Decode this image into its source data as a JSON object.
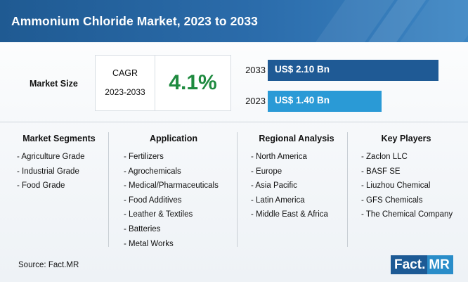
{
  "header": {
    "title": "Ammonium Chloride Market, 2023 to 2033"
  },
  "market_size": {
    "label": "Market Size",
    "cagr_label": "CAGR",
    "cagr_period": "2023-2033",
    "cagr_value": "4.1%"
  },
  "chart_data": {
    "type": "bar",
    "orientation": "horizontal",
    "categories": [
      "2033",
      "2023"
    ],
    "values": [
      2.1,
      1.4
    ],
    "value_labels": [
      "US$ 2.10 Bn",
      "US$ 1.40 Bn"
    ],
    "colors": [
      "#1f5a95",
      "#2a9ad6"
    ],
    "title": "",
    "xlabel": "",
    "ylabel": ""
  },
  "columns": [
    {
      "title": "Market Segments",
      "items": [
        "Agriculture Grade",
        "Industrial Grade",
        "Food Grade"
      ]
    },
    {
      "title": "Application",
      "items": [
        "Fertilizers",
        "Agrochemicals",
        "Medical/Pharmaceuticals",
        "Food Additives",
        "Leather & Textiles",
        "Batteries",
        "Metal Works"
      ]
    },
    {
      "title": "Regional Analysis",
      "items": [
        "North America",
        "Europe",
        "Asia Pacific",
        "Latin America",
        "Middle East & Africa"
      ]
    },
    {
      "title": "Key Players",
      "items": [
        "Zaclon LLC",
        "BASF SE",
        "Liuzhou Chemical",
        "GFS Chemicals",
        "The Chemical Company"
      ]
    }
  ],
  "footer": {
    "source": "Source: Fact.MR",
    "logo_left": "Fact.",
    "logo_right": "MR"
  }
}
